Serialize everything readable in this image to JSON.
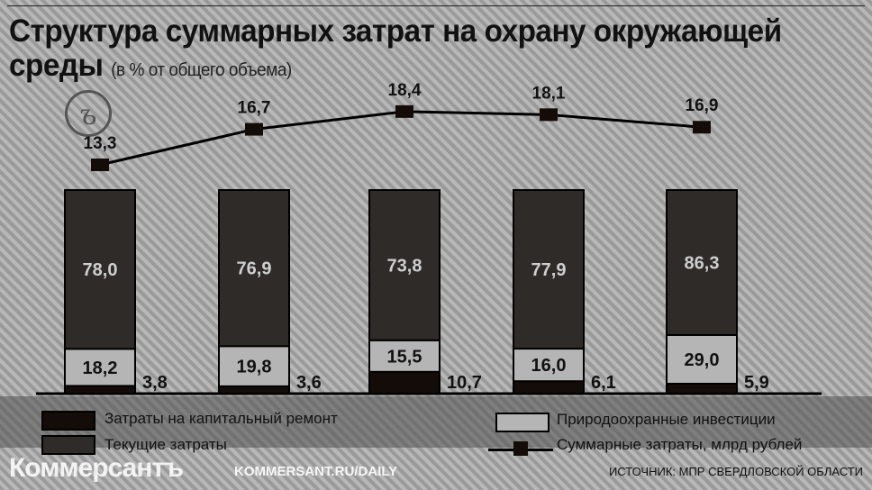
{
  "title": "Структура суммарных затрат на охрану окружающей среды",
  "subtitle": "(в % от общего объема)",
  "watermark": {
    "brand": "Коммерсантъ",
    "url": "KOMMERSANT.RU/DAILY"
  },
  "source": "ИСТОЧНИК: МПР СВЕРДЛОВСКОЙ ОБЛАСТИ",
  "colors": {
    "capital": "#140c08",
    "current": "#2e2b28",
    "investment": "#b5b5b5",
    "line": "#000000"
  },
  "chart_data": {
    "type": "bar",
    "stacked": true,
    "series": [
      {
        "name": "Затраты на капитальный ремонт",
        "values": [
          "3,8",
          "3,6",
          "10,7",
          "6,1",
          "5,9"
        ]
      },
      {
        "name": "Природоохранные инвестиции",
        "values": [
          "18,2",
          "19,8",
          "15,5",
          "16,0",
          "29,0"
        ]
      },
      {
        "name": "Текущие затраты",
        "values": [
          "78,0",
          "76,9",
          "73,8",
          "77,9",
          "86,3"
        ]
      }
    ],
    "line_series": {
      "name": "Суммарные затраты, млрд рублей",
      "values": [
        "13,3",
        "16,7",
        "18,4",
        "18,1",
        "16,9"
      ]
    },
    "legend": [
      "Затраты на капитальный ремонт",
      "Текущие затраты",
      "Природоохранные инвестиции",
      "Суммарные затраты, млрд рублей"
    ]
  }
}
